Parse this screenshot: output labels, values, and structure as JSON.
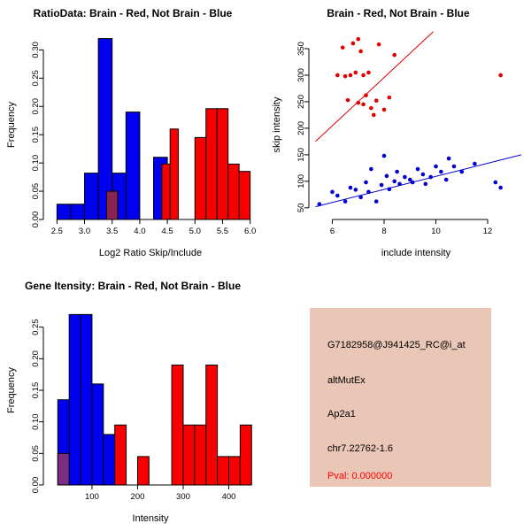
{
  "chart_data": [
    {
      "id": "ratio-histogram",
      "type": "bar",
      "title": "RatioData: Brain - Red, Not Brain - Blue",
      "xlabel": "Log2 Ratio Skip/Include",
      "ylabel": "Frequency",
      "xrange": [
        2.35,
        6.15
      ],
      "yrange": [
        0,
        0.335
      ],
      "xticks": [
        2.5,
        3.0,
        3.5,
        4.0,
        4.5,
        5.0,
        5.5,
        6.0
      ],
      "xtick_labels": [
        "2.5",
        "3.0",
        "3.5",
        "4.0",
        "4.5",
        "5.0",
        "5.5",
        "6.0"
      ],
      "yticks": [
        0,
        0.05,
        0.1,
        0.15,
        0.2,
        0.25,
        0.3
      ],
      "ytick_labels": [
        "0.00",
        "0.05",
        "0.10",
        "0.15",
        "0.20",
        "0.25",
        "0.30"
      ],
      "grid": false,
      "legend": "none",
      "series": [
        {
          "name": "not_brain",
          "color": "#0000F0",
          "bins": [
            [
              2.5,
              2.75,
              0.027
            ],
            [
              2.75,
              3.0,
              0.027
            ],
            [
              3.0,
              3.25,
              0.082
            ],
            [
              3.25,
              3.5,
              0.32
            ],
            [
              3.5,
              3.75,
              0.082
            ],
            [
              3.75,
              4.0,
              0.19
            ],
            [
              4.25,
              4.5,
              0.11
            ]
          ]
        },
        {
          "name": "overlap",
          "color": "#8B2252",
          "bins": [
            [
              3.4,
              3.6,
              0.05
            ]
          ]
        },
        {
          "name": "brain",
          "color": "#F80000",
          "bins": [
            [
              4.4,
              4.55,
              0.098
            ],
            [
              4.55,
              4.7,
              0.16
            ],
            [
              5.0,
              5.2,
              0.145
            ],
            [
              5.2,
              5.4,
              0.196
            ],
            [
              5.4,
              5.6,
              0.196
            ],
            [
              5.6,
              5.8,
              0.098
            ],
            [
              5.8,
              6.0,
              0.085
            ]
          ]
        }
      ]
    },
    {
      "id": "intensity-scatter",
      "type": "scatter",
      "title": "Brain - Red, Not Brain - Blue",
      "xlabel": "include intensity",
      "ylabel": "skip intensity",
      "xrange": [
        5.3,
        13.4
      ],
      "yrange": [
        28,
        385
      ],
      "xticks": [
        6,
        8,
        10,
        12
      ],
      "xtick_labels": [
        "6",
        "8",
        "10",
        "12"
      ],
      "yticks": [
        50,
        100,
        150,
        200,
        250,
        300,
        350
      ],
      "ytick_labels": [
        "50",
        "100",
        "150",
        "200",
        "250",
        "300",
        "350"
      ],
      "grid": false,
      "legend": "none",
      "series": [
        {
          "name": "brain",
          "color": "#E00000",
          "line": [
            5.35,
            175,
            9.9,
            382
          ],
          "points": [
            [
              6.2,
              300
            ],
            [
              6.4,
              352
            ],
            [
              6.5,
              298
            ],
            [
              6.6,
              253
            ],
            [
              6.7,
              300
            ],
            [
              6.8,
              360
            ],
            [
              6.9,
              305
            ],
            [
              7.0,
              368
            ],
            [
              7.0,
              248
            ],
            [
              7.1,
              345
            ],
            [
              7.2,
              300
            ],
            [
              7.2,
              245
            ],
            [
              7.3,
              262
            ],
            [
              7.4,
              305
            ],
            [
              7.5,
              238
            ],
            [
              7.6,
              225
            ],
            [
              7.7,
              252
            ],
            [
              7.8,
              358
            ],
            [
              8.0,
              235
            ],
            [
              8.2,
              258
            ],
            [
              8.4,
              338
            ],
            [
              12.5,
              300
            ]
          ]
        },
        {
          "name": "not_brain",
          "color": "#0000D0",
          "line": [
            5.35,
            52,
            13.3,
            150
          ],
          "points": [
            [
              5.5,
              57
            ],
            [
              6.0,
              80
            ],
            [
              6.2,
              73
            ],
            [
              6.5,
              62
            ],
            [
              6.7,
              88
            ],
            [
              6.9,
              84
            ],
            [
              7.1,
              70
            ],
            [
              7.3,
              98
            ],
            [
              7.4,
              80
            ],
            [
              7.5,
              123
            ],
            [
              7.7,
              62
            ],
            [
              7.9,
              93
            ],
            [
              8.0,
              148
            ],
            [
              8.1,
              110
            ],
            [
              8.2,
              85
            ],
            [
              8.4,
              100
            ],
            [
              8.5,
              118
            ],
            [
              8.6,
              95
            ],
            [
              8.8,
              108
            ],
            [
              9.0,
              103
            ],
            [
              9.1,
              98
            ],
            [
              9.3,
              123
            ],
            [
              9.5,
              113
            ],
            [
              9.6,
              95
            ],
            [
              9.8,
              108
            ],
            [
              10.0,
              128
            ],
            [
              10.2,
              118
            ],
            [
              10.4,
              103
            ],
            [
              10.5,
              143
            ],
            [
              10.7,
              128
            ],
            [
              11.0,
              118
            ],
            [
              11.5,
              133
            ],
            [
              12.3,
              98
            ],
            [
              12.5,
              88
            ]
          ]
        }
      ]
    },
    {
      "id": "gene-intensity-histogram",
      "type": "bar",
      "title": "Gene Itensity: Brain - Red, Not Brain - Blue",
      "xlabel": "Intensity",
      "ylabel": "Frequency",
      "xrange": [
        5,
        465
      ],
      "yrange": [
        0,
        0.3
      ],
      "xticks": [
        100,
        200,
        300,
        400
      ],
      "xtick_labels": [
        "100",
        "200",
        "300",
        "400"
      ],
      "yticks": [
        0,
        0.05,
        0.1,
        0.15,
        0.2,
        0.25
      ],
      "ytick_labels": [
        "0.00",
        "0.05",
        "0.10",
        "0.15",
        "0.20",
        "0.25"
      ],
      "grid": false,
      "legend": "none",
      "series": [
        {
          "name": "not_brain",
          "color": "#0000F0",
          "bins": [
            [
              25,
              50,
              0.135
            ],
            [
              50,
              75,
              0.27
            ],
            [
              75,
              100,
              0.27
            ],
            [
              100,
              125,
              0.16
            ],
            [
              125,
              150,
              0.08
            ],
            [
              150,
              160,
              0.03
            ]
          ]
        },
        {
          "name": "overlap",
          "color": "#7A2D83",
          "bins": [
            [
              25,
              50,
              0.05
            ]
          ]
        },
        {
          "name": "brain",
          "color": "#F80000",
          "bins": [
            [
              150,
              175,
              0.095
            ],
            [
              200,
              225,
              0.045
            ],
            [
              275,
              300,
              0.19
            ],
            [
              300,
              325,
              0.095
            ],
            [
              325,
              350,
              0.095
            ],
            [
              350,
              375,
              0.19
            ],
            [
              375,
              400,
              0.045
            ],
            [
              400,
              425,
              0.045
            ],
            [
              425,
              450,
              0.095
            ]
          ]
        }
      ]
    }
  ],
  "info_panel": {
    "bg_color": "#E9C6B6",
    "lines": [
      {
        "text": "G7182958@J941425_RC@i_at",
        "color": "#000000"
      },
      {
        "text": "altMutEx",
        "color": "#000000"
      },
      {
        "text": "Ap2a1",
        "color": "#000000"
      },
      {
        "text": "chr7.22762-1.6",
        "color": "#000000"
      },
      {
        "text": "Pval: 0.000000",
        "color": "#FF0000"
      }
    ]
  }
}
